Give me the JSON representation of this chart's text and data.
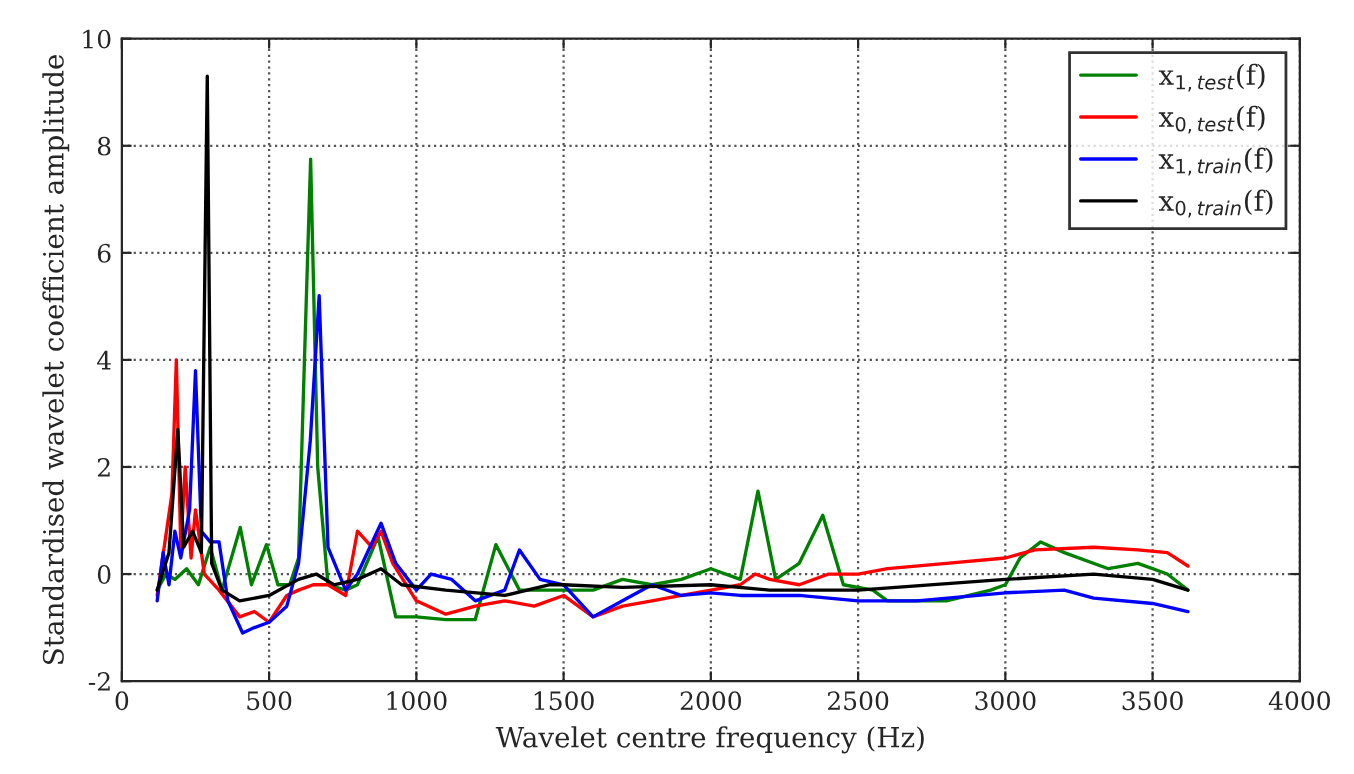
{
  "chart_data": {
    "type": "line",
    "xlabel": "Wavelet centre frequency (Hz)",
    "ylabel": "Standardised wavelet coefficient amplitude",
    "xlim": [
      0,
      4000
    ],
    "xticks": [
      0,
      500,
      1000,
      1500,
      2000,
      2500,
      3000,
      3500,
      4000
    ],
    "ylim": [
      -2,
      10
    ],
    "yticks": [
      -2,
      0,
      2,
      4,
      6,
      8,
      10
    ],
    "grid": true,
    "legend": "top right",
    "line_style": "solid",
    "series": [
      {
        "name": "x$_{1,test}$(f)",
        "color": "#008000",
        "x": [
          120,
          150,
          180,
          220,
          260,
          300,
          340,
          402,
          440,
          491,
          530,
          570,
          600,
          620,
          641,
          665,
          700,
          760,
          800,
          870,
          930,
          1000,
          1100,
          1200,
          1270,
          1350,
          1500,
          1600,
          1700,
          1800,
          1900,
          2000,
          2100,
          2160,
          2220,
          2300,
          2380,
          2450,
          2550,
          2600,
          2800,
          2950,
          3000,
          3050,
          3120,
          3200,
          3350,
          3450,
          3550,
          3620
        ],
        "values": [
          -0.3,
          0.0,
          -0.1,
          0.1,
          -0.2,
          0.5,
          -0.3,
          0.87,
          -0.2,
          0.55,
          -0.2,
          -0.2,
          0.3,
          4.0,
          7.75,
          2.0,
          -0.2,
          -0.3,
          -0.2,
          0.7,
          -0.8,
          -0.8,
          -0.85,
          -0.85,
          0.55,
          -0.3,
          -0.3,
          -0.3,
          -0.1,
          -0.2,
          -0.1,
          0.1,
          -0.1,
          1.55,
          -0.1,
          0.2,
          1.1,
          -0.2,
          -0.3,
          -0.5,
          -0.5,
          -0.3,
          -0.2,
          0.3,
          0.6,
          0.4,
          0.1,
          0.2,
          0.0,
          -0.3
        ]
      },
      {
        "name": "x$_{0,test}$(f)",
        "color": "#ff0000",
        "x": [
          120,
          170,
          185,
          200,
          215,
          235,
          250,
          280,
          330,
          400,
          450,
          500,
          560,
          600,
          650,
          700,
          760,
          800,
          850,
          880,
          920,
          1000,
          1100,
          1200,
          1300,
          1400,
          1500,
          1600,
          1700,
          1800,
          1900,
          2000,
          2100,
          2150,
          2200,
          2300,
          2400,
          2500,
          2600,
          2800,
          3000,
          3100,
          3300,
          3450,
          3550,
          3620
        ],
        "values": [
          -0.4,
          1.5,
          4.0,
          0.5,
          2.0,
          0.3,
          1.2,
          0.0,
          -0.3,
          -0.8,
          -0.7,
          -0.9,
          -0.4,
          -0.3,
          -0.2,
          -0.2,
          -0.4,
          0.8,
          0.5,
          0.8,
          0.2,
          -0.5,
          -0.75,
          -0.6,
          -0.5,
          -0.6,
          -0.4,
          -0.8,
          -0.6,
          -0.5,
          -0.4,
          -0.3,
          -0.2,
          0.0,
          -0.1,
          -0.2,
          0.0,
          0.0,
          0.1,
          0.2,
          0.3,
          0.45,
          0.5,
          0.45,
          0.4,
          0.15
        ]
      },
      {
        "name": "x$_{1,train}$(f)",
        "color": "#0000ff",
        "x": [
          120,
          140,
          160,
          180,
          200,
          230,
          250,
          270,
          300,
          330,
          360,
          410,
          450,
          500,
          560,
          600,
          640,
          670,
          700,
          760,
          800,
          880,
          930,
          1000,
          1050,
          1120,
          1200,
          1300,
          1350,
          1420,
          1500,
          1600,
          1700,
          1800,
          1900,
          2000,
          2100,
          2200,
          2300,
          2500,
          2700,
          3000,
          3200,
          3300,
          3500,
          3620
        ],
        "values": [
          -0.5,
          0.4,
          -0.2,
          0.8,
          0.3,
          1.2,
          3.8,
          0.8,
          0.6,
          0.6,
          -0.5,
          -1.1,
          -1.0,
          -0.9,
          -0.6,
          0.2,
          2.5,
          5.2,
          0.5,
          -0.3,
          0.0,
          0.95,
          0.2,
          -0.3,
          0.0,
          -0.1,
          -0.5,
          -0.3,
          0.45,
          -0.1,
          -0.2,
          -0.8,
          -0.5,
          -0.2,
          -0.4,
          -0.35,
          -0.4,
          -0.4,
          -0.4,
          -0.5,
          -0.5,
          -0.35,
          -0.3,
          -0.45,
          -0.55,
          -0.7
        ]
      },
      {
        "name": "x$_{0,train}$(f)",
        "color": "#000000",
        "x": [
          120,
          160,
          190,
          210,
          240,
          270,
          290,
          305,
          340,
          400,
          500,
          600,
          660,
          720,
          800,
          880,
          950,
          1100,
          1300,
          1450,
          1500,
          1700,
          2000,
          2200,
          2500,
          3000,
          3300,
          3500,
          3620
        ],
        "values": [
          -0.3,
          0.4,
          2.7,
          0.5,
          0.8,
          0.4,
          9.3,
          0.2,
          -0.3,
          -0.5,
          -0.4,
          -0.1,
          0.0,
          -0.2,
          -0.1,
          0.1,
          -0.2,
          -0.3,
          -0.4,
          -0.2,
          -0.2,
          -0.25,
          -0.2,
          -0.3,
          -0.3,
          -0.1,
          0.0,
          -0.1,
          -0.3
        ]
      }
    ]
  }
}
